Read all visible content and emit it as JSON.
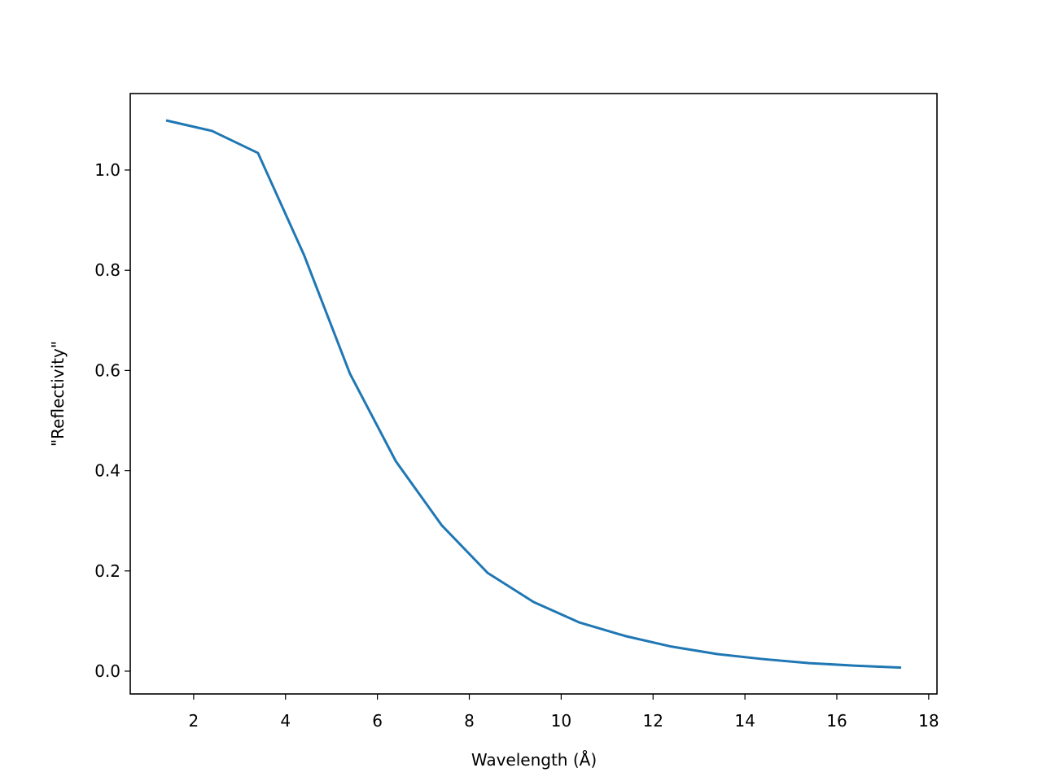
{
  "chart_data": {
    "type": "line",
    "x_label": "Wavelength (Å)",
    "y_label": "\"Reflectivity\"",
    "x": [
      1.4,
      2.4,
      3.4,
      4.4,
      5.4,
      6.4,
      7.4,
      8.4,
      9.4,
      10.4,
      11.4,
      12.4,
      13.4,
      14.4,
      15.4,
      16.4,
      17.4
    ],
    "series": [
      {
        "color": "#1f77b4",
        "values": [
          1.099,
          1.078,
          1.034,
          0.831,
          0.594,
          0.419,
          0.291,
          0.196,
          0.138,
          0.097,
          0.07,
          0.049,
          0.034,
          0.024,
          0.016,
          0.011,
          0.007
        ]
      }
    ],
    "xlim": [
      0.62,
      18.18
    ],
    "ylim": [
      -0.0455,
      1.1526
    ],
    "xticks": [
      2,
      4,
      6,
      8,
      10,
      12,
      14,
      16,
      18
    ],
    "yticks": [
      {
        "value": 0,
        "label": "0.0"
      },
      0.2,
      0.4,
      0.6,
      0.8,
      {
        "value": 1,
        "label": "1.0"
      }
    ]
  }
}
